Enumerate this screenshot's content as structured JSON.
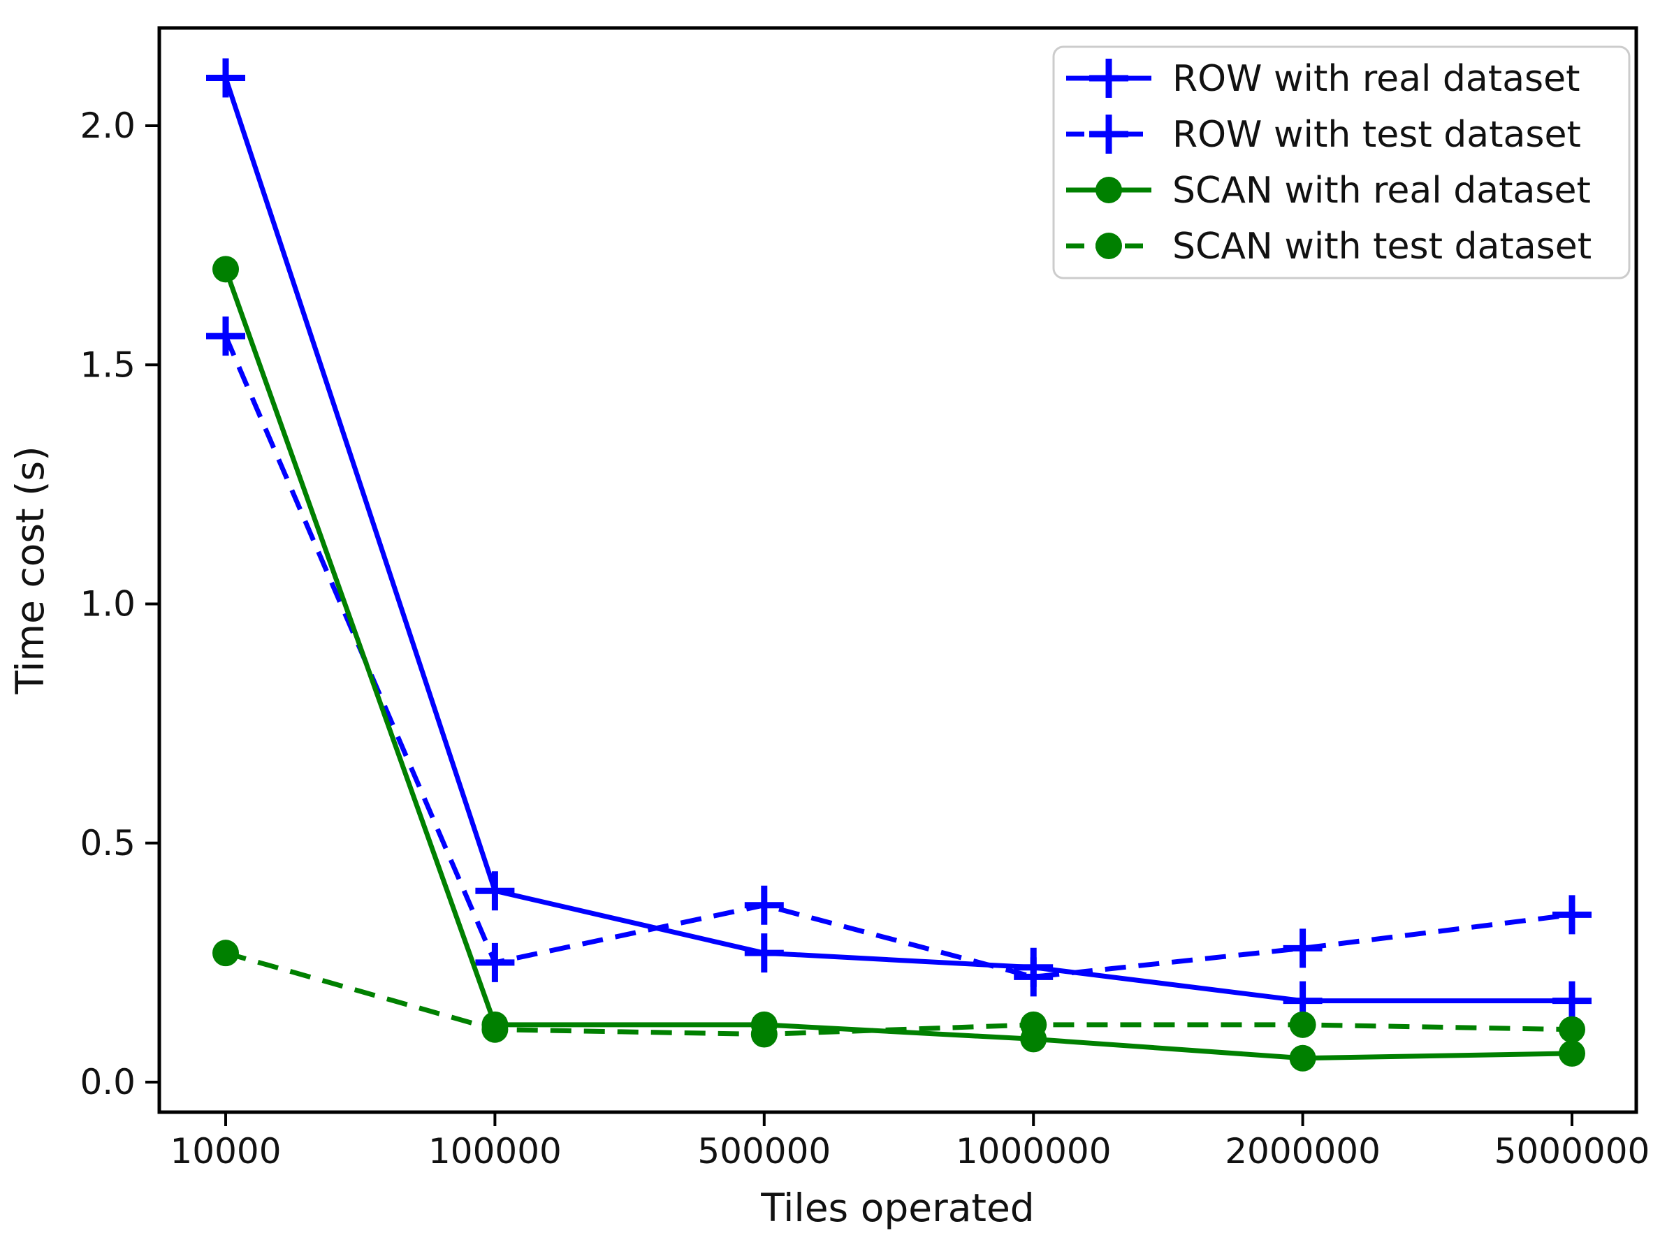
{
  "chart_data": {
    "type": "line",
    "title": "",
    "xlabel": "Tiles operated",
    "ylabel": "Time cost (s)",
    "x_scale": "categorical-even",
    "x_values": [
      10000,
      100000,
      500000,
      1000000,
      2000000,
      5000000
    ],
    "x_tick_labels": [
      "10000",
      "100000",
      "500000",
      "1000000",
      "2000000",
      "5000000"
    ],
    "y_ticks": [
      0.0,
      0.5,
      1.0,
      1.5,
      2.0
    ],
    "y_tick_labels": [
      "0.0",
      "0.5",
      "1.0",
      "1.5",
      "2.0"
    ],
    "ylim": [
      -0.06,
      2.2
    ],
    "grid": false,
    "legend": {
      "position": "upper right"
    },
    "series": [
      {
        "name": "ROW with real dataset",
        "color": "#0000ff",
        "line_style": "solid",
        "marker": "plus",
        "values": [
          2.1,
          0.4,
          0.27,
          0.24,
          0.17,
          0.17
        ]
      },
      {
        "name": "ROW with test dataset",
        "color": "#0000ff",
        "line_style": "dashed",
        "marker": "plus",
        "values": [
          1.56,
          0.25,
          0.37,
          0.22,
          0.28,
          0.35
        ]
      },
      {
        "name": "SCAN with real dataset",
        "color": "#008000",
        "line_style": "solid",
        "marker": "circle",
        "values": [
          1.7,
          0.12,
          0.12,
          0.09,
          0.05,
          0.06
        ]
      },
      {
        "name": "SCAN with test dataset",
        "color": "#008000",
        "line_style": "dashed",
        "marker": "circle",
        "values": [
          0.27,
          0.11,
          0.1,
          0.12,
          0.12,
          0.11
        ]
      }
    ]
  }
}
